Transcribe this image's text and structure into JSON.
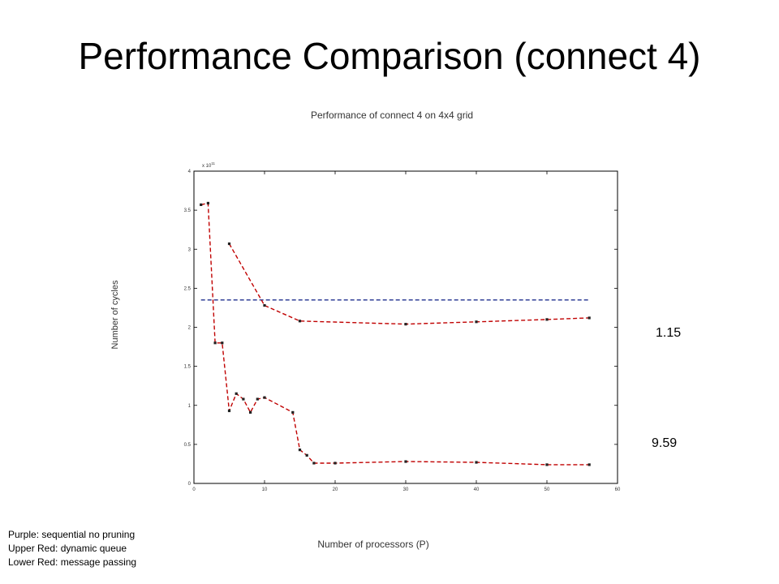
{
  "slide": {
    "title": "Performance Comparison (connect 4)",
    "annotations": [
      "1.15",
      "9.59"
    ],
    "legend_note": [
      "Purple: sequential no pruning",
      "Upper Red:  dynamic queue",
      "Lower Red: message passing"
    ]
  },
  "chart_data": {
    "type": "line",
    "title": "Performance of connect 4 on 4x4 grid",
    "xlabel": "Number of processors (P)",
    "ylabel": "Number of cycles",
    "xlim": [
      0,
      60
    ],
    "ylim": [
      0,
      4
    ],
    "y_multiplier_label": "x 10",
    "y_multiplier_exponent": "11",
    "xticks": [
      0,
      10,
      20,
      30,
      40,
      50,
      60
    ],
    "yticks": [
      0,
      0.5,
      1,
      1.5,
      2,
      2.5,
      3,
      3.5,
      4
    ],
    "grid": false,
    "series": [
      {
        "color": "#1f2f8f",
        "dash": true,
        "markers": false,
        "x": [
          1,
          56
        ],
        "y": [
          2.35,
          2.35
        ]
      },
      {
        "color": "#c00000",
        "dash": true,
        "markers": true,
        "x": [
          5,
          10,
          15,
          30,
          40,
          50,
          56
        ],
        "y": [
          3.07,
          2.28,
          2.08,
          2.04,
          2.07,
          2.1,
          2.12
        ]
      },
      {
        "color": "#c00000",
        "dash": true,
        "markers": true,
        "x": [
          1,
          2,
          3,
          4,
          5,
          6,
          7,
          8,
          9,
          10,
          14,
          15,
          16,
          17,
          20,
          30,
          40,
          50,
          56
        ],
        "y": [
          3.57,
          3.59,
          1.8,
          1.8,
          0.93,
          1.15,
          1.08,
          0.91,
          1.08,
          1.1,
          0.91,
          0.43,
          0.36,
          0.26,
          0.26,
          0.28,
          0.27,
          0.24,
          0.24
        ]
      }
    ]
  }
}
